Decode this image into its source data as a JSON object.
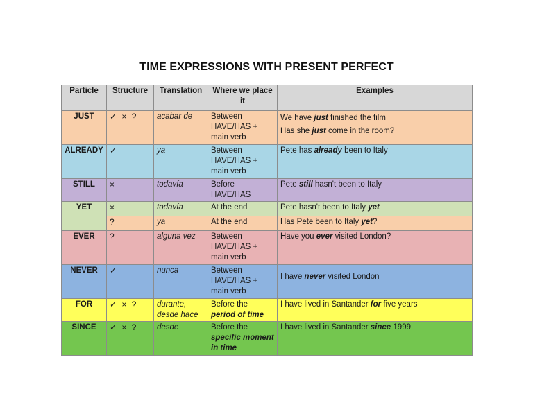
{
  "title": "TIME EXPRESSIONS WITH PRESENT PERFECT",
  "headers": {
    "particle": "Particle",
    "structure": "Structure",
    "translation": "Translation",
    "where": "Where we place it",
    "examples": "Examples"
  },
  "colors": {
    "header": "#d7d7d7",
    "just": "#f9cfaa",
    "already": "#a9d6e6",
    "still": "#c2b0d6",
    "yet_1": "#cfe1b6",
    "yet_2": "#f9cfaa",
    "ever": "#e8b2b4",
    "never": "#8db3e0",
    "for": "#ffff5a",
    "since": "#74c64f"
  },
  "rows": {
    "just": {
      "particle": "JUST",
      "structure": "✓ × ?",
      "translation": "acabar de",
      "where": "Between HAVE/HAS + main verb",
      "ex1_a": "We have ",
      "ex1_b": "just",
      "ex1_c": " finished the film",
      "ex2_a": "Has she ",
      "ex2_b": "just",
      "ex2_c": " come in the room?"
    },
    "already": {
      "particle": "ALREADY",
      "structure": "✓",
      "translation": "ya",
      "where": "Between HAVE/HAS + main verb",
      "ex_a": "Pete has ",
      "ex_b": "already",
      "ex_c": " been to Italy"
    },
    "still": {
      "particle": "STILL",
      "structure": "×",
      "translation": "todavía",
      "where": "Before HAVE/HAS",
      "ex_a": "Pete ",
      "ex_b": "still",
      "ex_c": " hasn't been to Italy"
    },
    "yet": {
      "particle": "YET",
      "structure_1": "×",
      "translation_1": "todavía",
      "where_1": "At the end",
      "ex1_a": "Pete hasn't been to Italy ",
      "ex1_b": "yet",
      "ex1_c": "",
      "structure_2": "?",
      "translation_2": "ya",
      "where_2": "At the end",
      "ex2_a": "Has Pete been to Italy ",
      "ex2_b": "yet",
      "ex2_c": "?"
    },
    "ever": {
      "particle": "EVER",
      "structure": "?",
      "translation": "alguna vez",
      "where": "Between HAVE/HAS + main verb",
      "ex_a": "Have you ",
      "ex_b": "ever",
      "ex_c": " visited London?"
    },
    "never": {
      "particle": "NEVER",
      "structure": "✓",
      "translation": "nunca",
      "where": "Between HAVE/HAS + main verb",
      "ex_a": "I have ",
      "ex_b": "never",
      "ex_c": " visited London"
    },
    "for": {
      "particle": "FOR",
      "structure": "✓ × ?",
      "translation": "durante, desde hace",
      "where_a": "Before the",
      "where_b": "period of time",
      "ex_a": "I have lived in Santander ",
      "ex_b": "for",
      "ex_c": " five years"
    },
    "since": {
      "particle": "SINCE",
      "structure": "✓ × ?",
      "translation": "desde",
      "where_a": "Before the",
      "where_b": "specific moment in time",
      "ex_a": "I have lived in Santander ",
      "ex_b": "since",
      "ex_c": " 1999"
    }
  }
}
